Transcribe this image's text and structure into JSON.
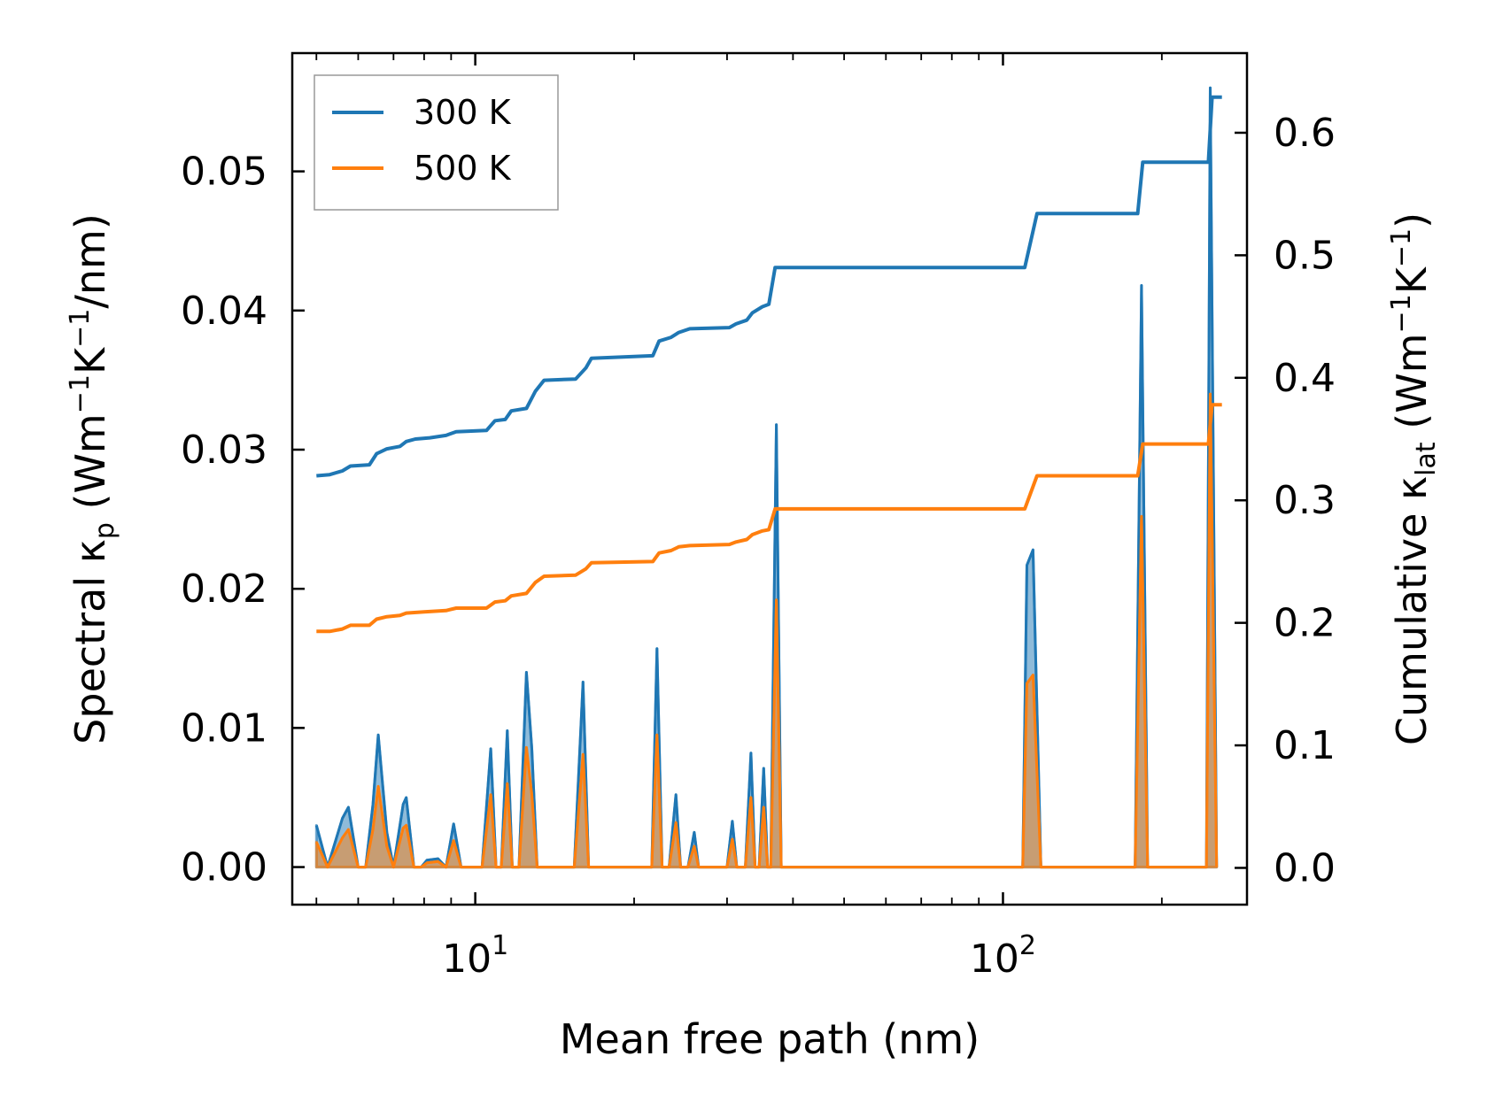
{
  "chart_data": {
    "type": "line",
    "xscale": "log",
    "xlabel": "Mean free path (nm)",
    "xlim": [
      4.5,
      290
    ],
    "x_ticks": [
      10,
      100
    ],
    "x_tick_labels": [
      {
        "base": "10",
        "exp": "1"
      },
      {
        "base": "10",
        "exp": "2"
      }
    ],
    "left_axis": {
      "label_main": "Spectral κ",
      "label_sub": "p",
      "label_units": "(Wm",
      "label_exp1": "−1",
      "label_mid": "K",
      "label_exp2": "−1",
      "label_tail": "/nm)",
      "ylim": [
        -0.0027,
        0.0585
      ],
      "ticks": [
        0.0,
        0.01,
        0.02,
        0.03,
        0.04,
        0.05
      ],
      "tick_labels": [
        "0.00",
        "0.01",
        "0.02",
        "0.03",
        "0.04",
        "0.05"
      ]
    },
    "right_axis": {
      "label_main": "Cumulative κ",
      "label_sub": "lat",
      "label_units": "(Wm",
      "label_exp1": "−1",
      "label_mid": "K",
      "label_exp2": "−1",
      "label_tail": ")",
      "ylim": [
        -0.03,
        0.665
      ],
      "ticks": [
        0.0,
        0.1,
        0.2,
        0.3,
        0.4,
        0.5,
        0.6
      ],
      "tick_labels": [
        "0.0",
        "0.1",
        "0.2",
        "0.3",
        "0.4",
        "0.5",
        "0.6"
      ]
    },
    "legend": {
      "placement": "upper-left",
      "entries": [
        {
          "label": "300 K",
          "color": "#1f77b4"
        },
        {
          "label": "500 K",
          "color": "#ff7f0e"
        }
      ]
    },
    "cumulative_series": [
      {
        "name": "300 K",
        "color": "#1f77b4",
        "points": [
          [
            5.0,
            0.32
          ],
          [
            5.3,
            0.321
          ],
          [
            5.6,
            0.324
          ],
          [
            5.8,
            0.328
          ],
          [
            6.3,
            0.329
          ],
          [
            6.5,
            0.338
          ],
          [
            6.8,
            0.342
          ],
          [
            7.2,
            0.344
          ],
          [
            7.4,
            0.348
          ],
          [
            7.7,
            0.35
          ],
          [
            8.2,
            0.351
          ],
          [
            8.8,
            0.353
          ],
          [
            9.2,
            0.356
          ],
          [
            10.5,
            0.357
          ],
          [
            10.9,
            0.365
          ],
          [
            11.4,
            0.366
          ],
          [
            11.7,
            0.373
          ],
          [
            12.5,
            0.375
          ],
          [
            13.0,
            0.389
          ],
          [
            13.5,
            0.398
          ],
          [
            15.5,
            0.399
          ],
          [
            16.2,
            0.408
          ],
          [
            16.6,
            0.416
          ],
          [
            21.7,
            0.418
          ],
          [
            22.3,
            0.43
          ],
          [
            23.5,
            0.433
          ],
          [
            24.3,
            0.437
          ],
          [
            25.5,
            0.44
          ],
          [
            30.3,
            0.441
          ],
          [
            31.2,
            0.444
          ],
          [
            32.7,
            0.447
          ],
          [
            33.5,
            0.453
          ],
          [
            35.0,
            0.458
          ],
          [
            36.0,
            0.46
          ],
          [
            37.0,
            0.49
          ],
          [
            110,
            0.49
          ],
          [
            116,
            0.534
          ],
          [
            180,
            0.534
          ],
          [
            184,
            0.576
          ],
          [
            245,
            0.576
          ],
          [
            249,
            0.629
          ],
          [
            260,
            0.629
          ]
        ]
      },
      {
        "name": "500 K",
        "color": "#ff7f0e",
        "points": [
          [
            5.0,
            0.193
          ],
          [
            5.3,
            0.193
          ],
          [
            5.6,
            0.195
          ],
          [
            5.8,
            0.198
          ],
          [
            6.3,
            0.198
          ],
          [
            6.5,
            0.203
          ],
          [
            6.8,
            0.205
          ],
          [
            7.2,
            0.206
          ],
          [
            7.4,
            0.208
          ],
          [
            8.0,
            0.209
          ],
          [
            8.8,
            0.21
          ],
          [
            9.2,
            0.212
          ],
          [
            10.5,
            0.212
          ],
          [
            10.9,
            0.217
          ],
          [
            11.4,
            0.218
          ],
          [
            11.7,
            0.222
          ],
          [
            12.5,
            0.224
          ],
          [
            13.0,
            0.233
          ],
          [
            13.5,
            0.238
          ],
          [
            15.5,
            0.239
          ],
          [
            16.2,
            0.244
          ],
          [
            16.6,
            0.249
          ],
          [
            21.7,
            0.25
          ],
          [
            22.3,
            0.257
          ],
          [
            23.5,
            0.259
          ],
          [
            24.3,
            0.262
          ],
          [
            25.5,
            0.263
          ],
          [
            30.3,
            0.264
          ],
          [
            31.2,
            0.266
          ],
          [
            32.7,
            0.268
          ],
          [
            33.5,
            0.272
          ],
          [
            35.0,
            0.275
          ],
          [
            36.0,
            0.276
          ],
          [
            37.0,
            0.293
          ],
          [
            110,
            0.293
          ],
          [
            116,
            0.32
          ],
          [
            180,
            0.32
          ],
          [
            184,
            0.346
          ],
          [
            245,
            0.346
          ],
          [
            249,
            0.378
          ],
          [
            260,
            0.378
          ]
        ]
      }
    ],
    "spectral_series": [
      {
        "name": "300 K",
        "color": "#1f77b4",
        "points": [
          [
            5.0,
            0.003
          ],
          [
            5.25,
            0.0
          ],
          [
            5.6,
            0.0035
          ],
          [
            5.75,
            0.0043
          ],
          [
            6.0,
            0.0
          ],
          [
            6.2,
            0.0
          ],
          [
            6.4,
            0.0045
          ],
          [
            6.55,
            0.0095
          ],
          [
            6.8,
            0.0025
          ],
          [
            7.0,
            0.0
          ],
          [
            7.3,
            0.0045
          ],
          [
            7.4,
            0.005
          ],
          [
            7.65,
            0.0
          ],
          [
            7.9,
            0.0
          ],
          [
            8.1,
            0.0005
          ],
          [
            8.5,
            0.0006
          ],
          [
            8.8,
            0.0
          ],
          [
            9.1,
            0.0031
          ],
          [
            9.4,
            0.0
          ],
          [
            10.3,
            0.0
          ],
          [
            10.7,
            0.0085
          ],
          [
            10.95,
            0.0
          ],
          [
            11.2,
            0.0
          ],
          [
            11.5,
            0.0098
          ],
          [
            11.75,
            0.0
          ],
          [
            12.1,
            0.0
          ],
          [
            12.5,
            0.014
          ],
          [
            12.8,
            0.0085
          ],
          [
            13.1,
            0.0
          ],
          [
            15.4,
            0.0
          ],
          [
            16.0,
            0.0133
          ],
          [
            16.4,
            0.0
          ],
          [
            21.6,
            0.0
          ],
          [
            22.1,
            0.0157
          ],
          [
            22.6,
            0.0
          ],
          [
            23.3,
            0.0
          ],
          [
            24.0,
            0.0052
          ],
          [
            24.5,
            0.0
          ],
          [
            25.3,
            0.0
          ],
          [
            26.0,
            0.0025
          ],
          [
            26.5,
            0.0
          ],
          [
            30.0,
            0.0
          ],
          [
            30.7,
            0.0033
          ],
          [
            31.3,
            0.0
          ],
          [
            32.5,
            0.0
          ],
          [
            33.3,
            0.0082
          ],
          [
            33.9,
            0.0
          ],
          [
            34.5,
            0.0
          ],
          [
            35.2,
            0.0071
          ],
          [
            35.8,
            0.0
          ],
          [
            36.3,
            0.0
          ],
          [
            37.2,
            0.0318
          ],
          [
            38.0,
            0.0
          ],
          [
            109,
            0.0
          ],
          [
            111,
            0.0217
          ],
          [
            114,
            0.0228
          ],
          [
            118,
            0.0
          ],
          [
            178,
            0.0
          ],
          [
            183,
            0.0418
          ],
          [
            188,
            0.0
          ],
          [
            243,
            0.0
          ],
          [
            247,
            0.056
          ],
          [
            254,
            0.0
          ]
        ]
      },
      {
        "name": "500 K",
        "color": "#ff7f0e",
        "points": [
          [
            5.0,
            0.0018
          ],
          [
            5.25,
            0.0
          ],
          [
            5.6,
            0.0021
          ],
          [
            5.75,
            0.0027
          ],
          [
            6.0,
            0.0
          ],
          [
            6.2,
            0.0
          ],
          [
            6.4,
            0.0027
          ],
          [
            6.55,
            0.0058
          ],
          [
            6.8,
            0.0015
          ],
          [
            7.0,
            0.0
          ],
          [
            7.3,
            0.0028
          ],
          [
            7.4,
            0.003
          ],
          [
            7.65,
            0.0
          ],
          [
            7.9,
            0.0
          ],
          [
            8.1,
            0.0003
          ],
          [
            8.5,
            0.0004
          ],
          [
            8.8,
            0.0
          ],
          [
            9.1,
            0.0019
          ],
          [
            9.4,
            0.0
          ],
          [
            10.3,
            0.0
          ],
          [
            10.7,
            0.0052
          ],
          [
            10.95,
            0.0
          ],
          [
            11.2,
            0.0
          ],
          [
            11.5,
            0.006
          ],
          [
            11.75,
            0.0
          ],
          [
            12.1,
            0.0
          ],
          [
            12.5,
            0.0086
          ],
          [
            12.8,
            0.0052
          ],
          [
            13.1,
            0.0
          ],
          [
            15.4,
            0.0
          ],
          [
            16.0,
            0.0081
          ],
          [
            16.4,
            0.0
          ],
          [
            21.6,
            0.0
          ],
          [
            22.1,
            0.0095
          ],
          [
            22.6,
            0.0
          ],
          [
            23.3,
            0.0
          ],
          [
            24.0,
            0.0032
          ],
          [
            24.5,
            0.0
          ],
          [
            25.3,
            0.0
          ],
          [
            26.0,
            0.0015
          ],
          [
            26.5,
            0.0
          ],
          [
            30.0,
            0.0
          ],
          [
            30.7,
            0.002
          ],
          [
            31.3,
            0.0
          ],
          [
            32.5,
            0.0
          ],
          [
            33.3,
            0.005
          ],
          [
            33.9,
            0.0
          ],
          [
            34.5,
            0.0
          ],
          [
            35.2,
            0.0043
          ],
          [
            35.8,
            0.0
          ],
          [
            36.3,
            0.0
          ],
          [
            37.2,
            0.0192
          ],
          [
            38.0,
            0.0
          ],
          [
            109,
            0.0
          ],
          [
            111,
            0.0132
          ],
          [
            114,
            0.0138
          ],
          [
            118,
            0.0
          ],
          [
            178,
            0.0
          ],
          [
            183,
            0.0252
          ],
          [
            188,
            0.0
          ],
          [
            243,
            0.0
          ],
          [
            247,
            0.034
          ],
          [
            254,
            0.0
          ]
        ]
      }
    ]
  }
}
